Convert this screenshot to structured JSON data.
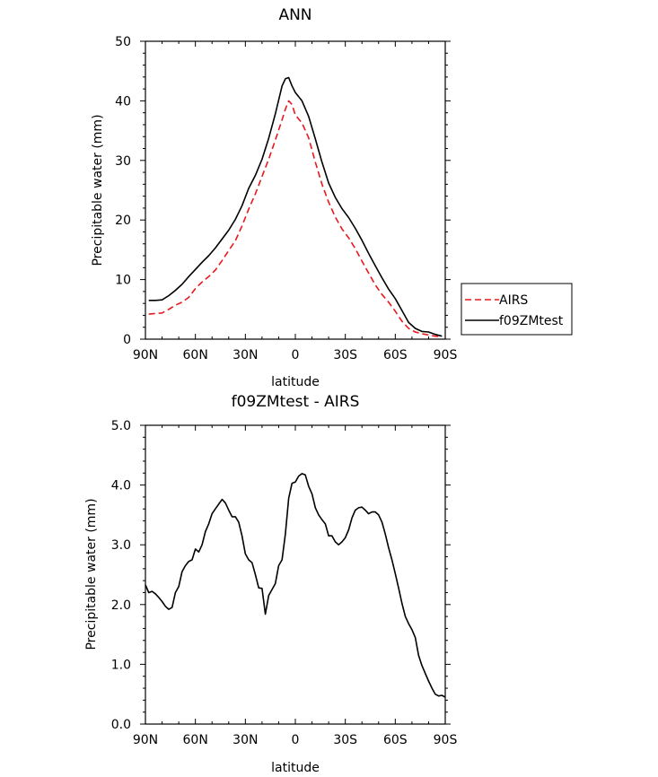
{
  "chart_data": [
    {
      "type": "line",
      "title": "ANN",
      "xlabel": "latitude",
      "ylabel": "Precipitable water  (mm)",
      "xlim": [
        -90,
        90
      ],
      "ylim": [
        0,
        50
      ],
      "x_tick_values": [
        -90,
        -60,
        -30,
        0,
        30,
        60,
        90
      ],
      "x_tick_labels": [
        "90N",
        "60N",
        "30N",
        "0",
        "30S",
        "60S",
        "90S"
      ],
      "y_tick_values": [
        0,
        10,
        20,
        30,
        40,
        50
      ],
      "y_tick_labels": [
        "0",
        "10",
        "20",
        "30",
        "40",
        "50"
      ],
      "legend_position": "right",
      "series": [
        {
          "name": "AIRS",
          "color": "#e8181c",
          "dash": "dashed",
          "x": [
            -88,
            -84,
            -80,
            -76,
            -72,
            -68,
            -64,
            -60,
            -56,
            -52,
            -48,
            -44,
            -40,
            -36,
            -32,
            -28,
            -24,
            -20,
            -16,
            -12,
            -8,
            -6,
            -4,
            -2,
            0,
            4,
            8,
            12,
            16,
            20,
            24,
            28,
            32,
            36,
            40,
            44,
            48,
            52,
            56,
            60,
            64,
            68,
            72,
            76,
            80,
            84,
            88
          ],
          "values": [
            4.2,
            4.3,
            4.4,
            5.0,
            5.7,
            6.2,
            7.0,
            8.5,
            9.6,
            10.5,
            11.6,
            13.2,
            14.9,
            16.5,
            19.0,
            21.8,
            24.4,
            27.3,
            30.2,
            33.4,
            36.8,
            38.6,
            40.0,
            39.4,
            37.6,
            36.3,
            33.8,
            29.7,
            26.0,
            23.0,
            20.5,
            18.5,
            17.0,
            15.2,
            13.1,
            11.1,
            9.1,
            7.5,
            6.2,
            4.7,
            3.0,
            1.8,
            1.2,
            0.9,
            0.7,
            0.5,
            0.4
          ]
        },
        {
          "name": "f09ZMtest",
          "color": "#000000",
          "dash": "solid",
          "x": [
            -88,
            -84,
            -80,
            -76,
            -72,
            -68,
            -64,
            -60,
            -56,
            -52,
            -48,
            -44,
            -40,
            -36,
            -32,
            -28,
            -24,
            -20,
            -16,
            -12,
            -8,
            -6,
            -4,
            -2,
            0,
            4,
            8,
            12,
            16,
            20,
            24,
            28,
            32,
            36,
            40,
            44,
            48,
            52,
            56,
            60,
            64,
            68,
            72,
            76,
            80,
            84,
            88
          ],
          "values": [
            6.5,
            6.5,
            6.6,
            7.3,
            8.2,
            9.2,
            10.5,
            11.7,
            12.9,
            14.0,
            15.3,
            16.8,
            18.3,
            20.1,
            22.4,
            25.3,
            27.5,
            30.2,
            33.7,
            37.8,
            42.5,
            43.7,
            43.9,
            42.5,
            41.4,
            40.0,
            37.4,
            33.6,
            29.7,
            26.2,
            23.8,
            21.9,
            20.4,
            18.6,
            16.6,
            14.4,
            12.3,
            10.3,
            8.4,
            6.8,
            4.8,
            2.8,
            1.8,
            1.3,
            1.2,
            0.8,
            0.5
          ]
        }
      ]
    },
    {
      "type": "line",
      "title": "f09ZMtest  -  AIRS",
      "xlabel": "latitude",
      "ylabel": "Precipitable water (mm)",
      "xlim": [
        -90,
        90
      ],
      "ylim": [
        0,
        5
      ],
      "x_tick_values": [
        -90,
        -60,
        -30,
        0,
        30,
        60,
        90
      ],
      "x_tick_labels": [
        "90N",
        "60N",
        "30N",
        "0",
        "30S",
        "60S",
        "90S"
      ],
      "y_tick_values": [
        0,
        1,
        2,
        3,
        4,
        5
      ],
      "y_tick_labels": [
        "0.0",
        "1.0",
        "2.0",
        "3.0",
        "4.0",
        "5.0"
      ],
      "series": [
        {
          "color": "#000000",
          "dash": "solid",
          "x": [
            -90,
            -88,
            -86,
            -84,
            -82,
            -80,
            -78,
            -76,
            -74,
            -72,
            -70,
            -68,
            -66,
            -64,
            -62,
            -60,
            -58,
            -56,
            -54,
            -52,
            -50,
            -48,
            -46,
            -44,
            -42,
            -40,
            -38,
            -36,
            -34,
            -32,
            -30,
            -28,
            -26,
            -24,
            -22,
            -20,
            -18,
            -16,
            -14,
            -12,
            -10,
            -8,
            -6,
            -4,
            -2,
            0,
            2,
            4,
            6,
            8,
            10,
            12,
            14,
            16,
            18,
            20,
            22,
            24,
            26,
            28,
            30,
            32,
            34,
            36,
            38,
            40,
            42,
            44,
            46,
            48,
            50,
            52,
            54,
            56,
            58,
            60,
            62,
            64,
            66,
            68,
            70,
            72,
            74,
            76,
            78,
            80,
            82,
            84,
            86,
            88,
            90
          ],
          "values": [
            2.33,
            2.2,
            2.22,
            2.18,
            2.12,
            2.05,
            1.97,
            1.92,
            1.95,
            2.2,
            2.3,
            2.55,
            2.65,
            2.72,
            2.75,
            2.93,
            2.88,
            3.0,
            3.22,
            3.35,
            3.52,
            3.6,
            3.68,
            3.76,
            3.7,
            3.58,
            3.47,
            3.47,
            3.38,
            3.15,
            2.85,
            2.75,
            2.7,
            2.5,
            2.28,
            2.27,
            1.84,
            2.15,
            2.25,
            2.35,
            2.65,
            2.75,
            3.18,
            3.78,
            4.03,
            4.05,
            4.15,
            4.19,
            4.17,
            3.98,
            3.85,
            3.62,
            3.5,
            3.42,
            3.35,
            3.15,
            3.15,
            3.05,
            3.0,
            3.05,
            3.12,
            3.25,
            3.45,
            3.58,
            3.62,
            3.63,
            3.58,
            3.52,
            3.55,
            3.55,
            3.5,
            3.38,
            3.18,
            2.95,
            2.75,
            2.52,
            2.28,
            2.02,
            1.8,
            1.68,
            1.58,
            1.45,
            1.15,
            0.98,
            0.85,
            0.72,
            0.6,
            0.5,
            0.47,
            0.48,
            0.45
          ]
        }
      ]
    }
  ]
}
